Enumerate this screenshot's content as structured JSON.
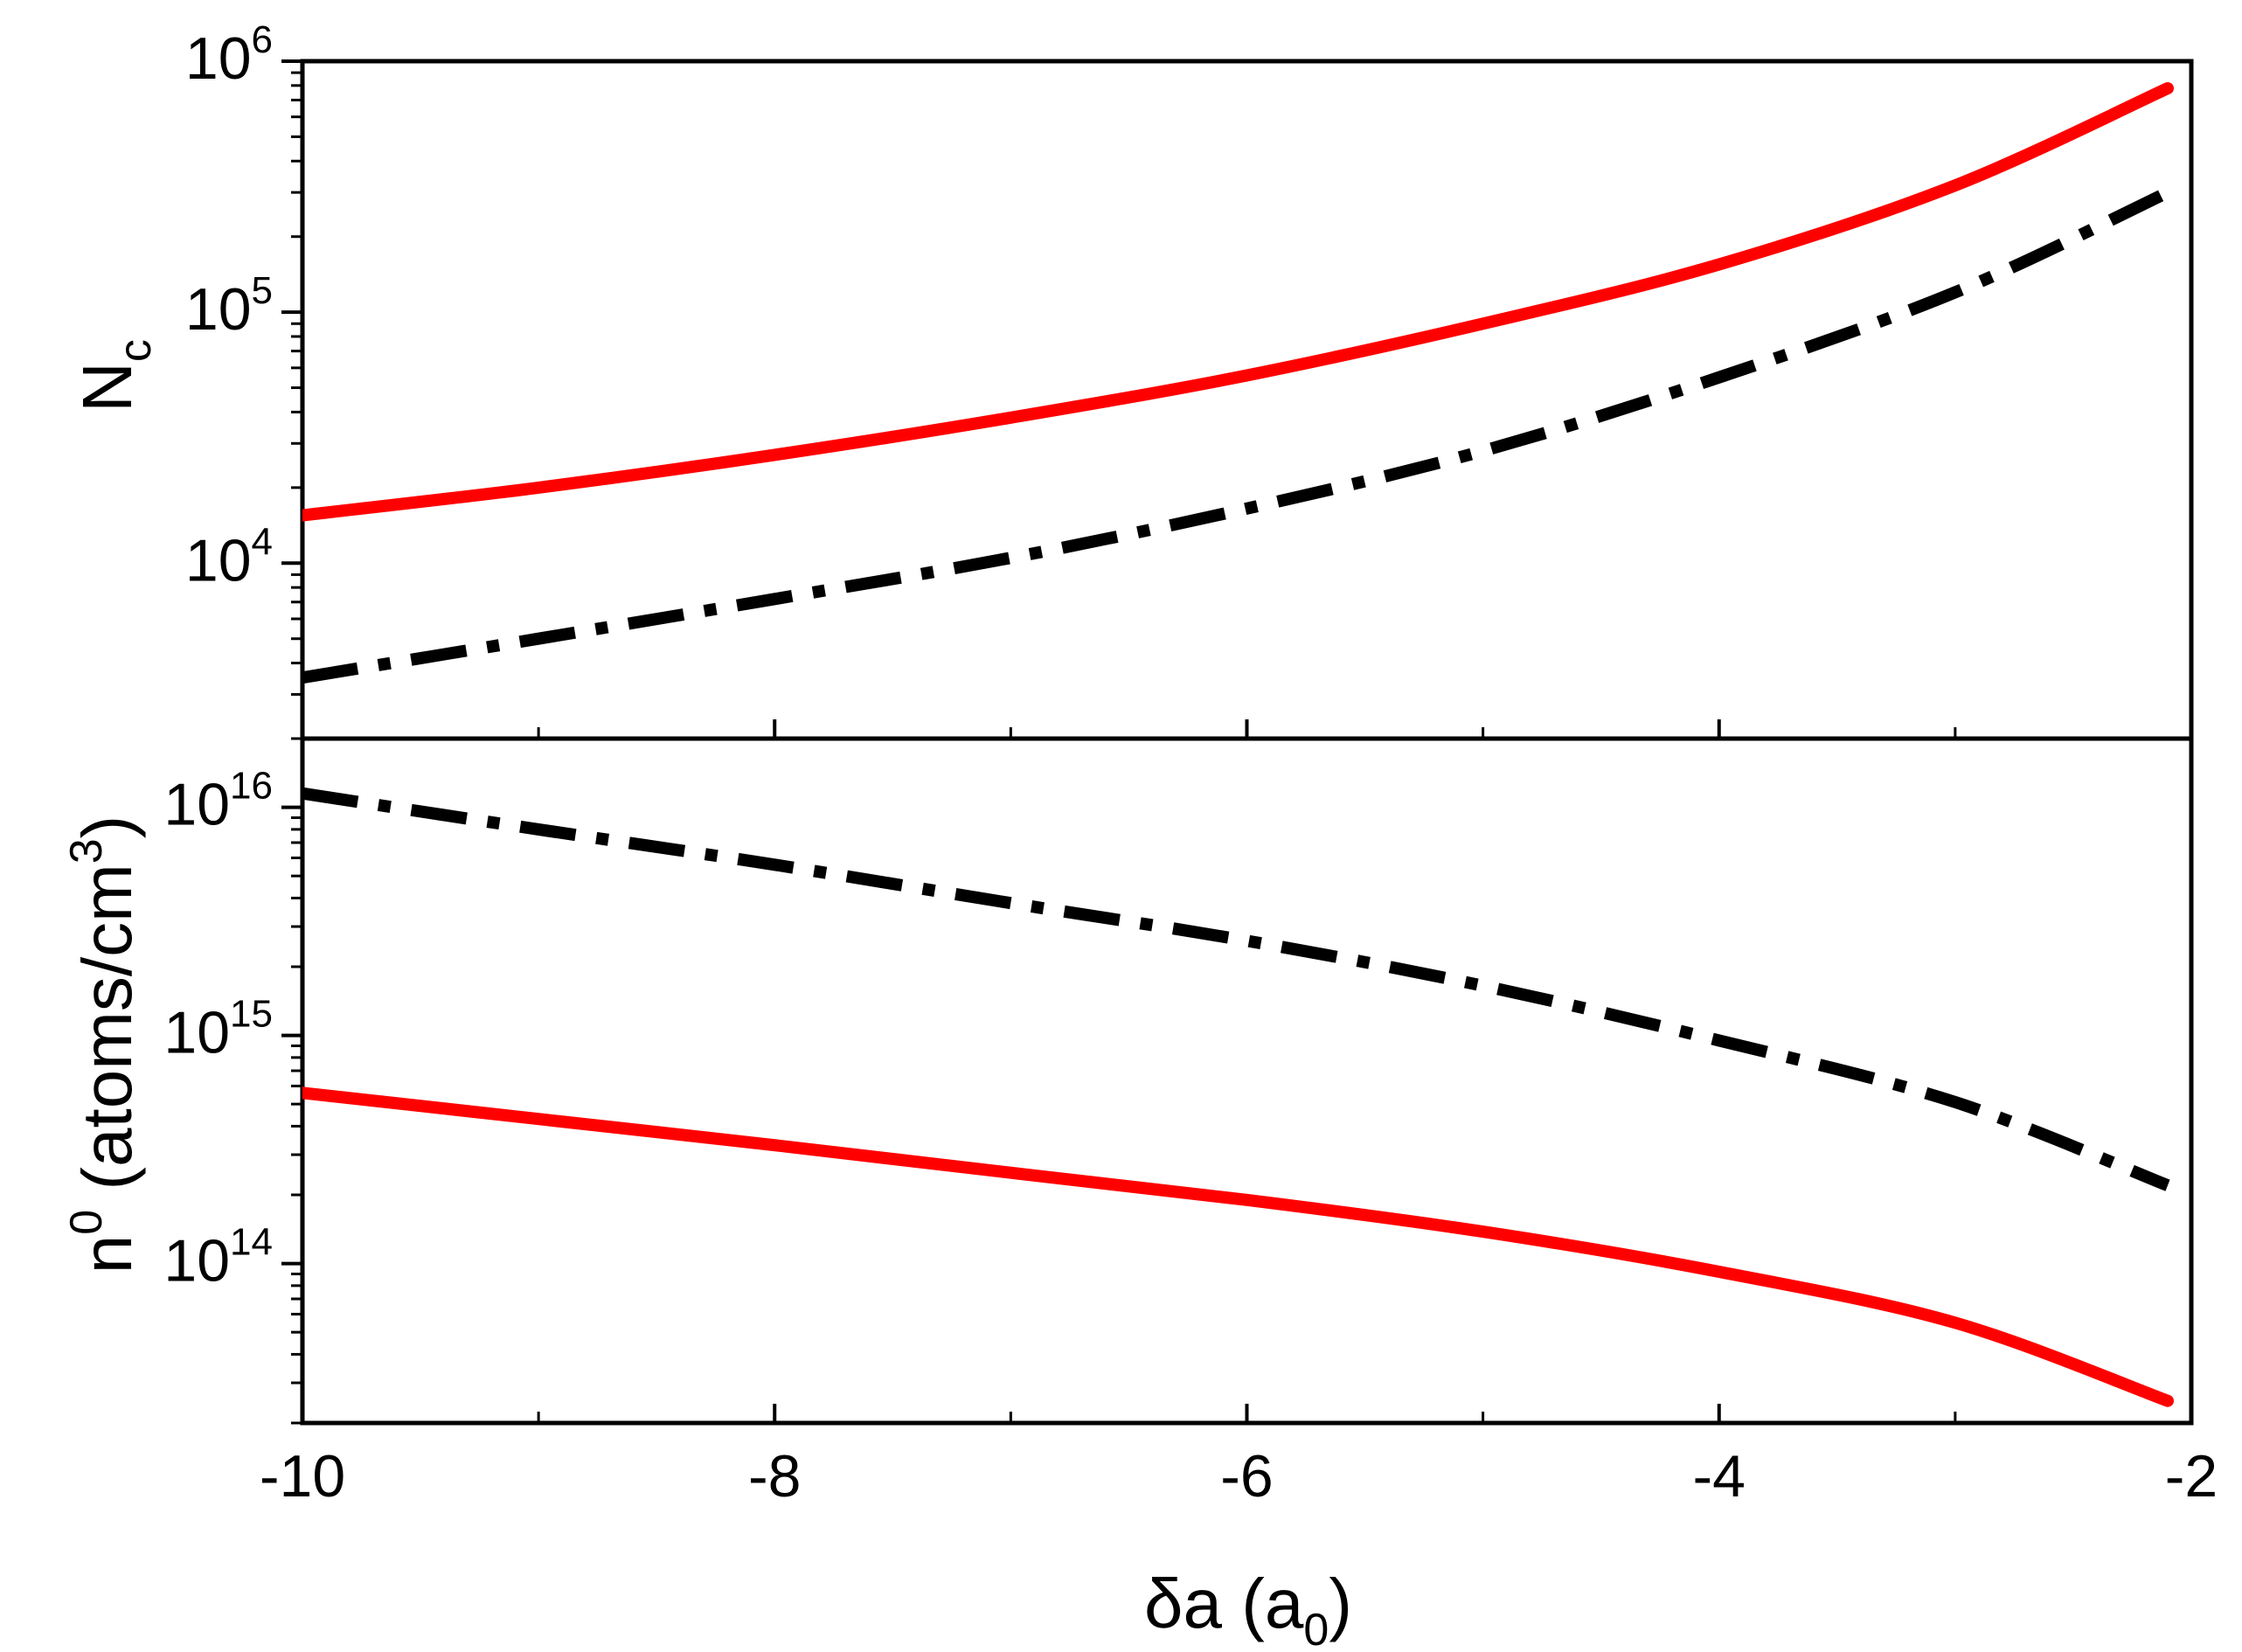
{
  "chart_data": [
    {
      "type": "line",
      "panel": "top",
      "title": "",
      "xlabel": "",
      "ylabel": "Nc",
      "ylabel_main": "N",
      "ylabel_sub": "c",
      "yscale": "log",
      "xlim": [
        -10,
        -2
      ],
      "ylim": [
        2000,
        1000000
      ],
      "yticks": [
        {
          "base": "10",
          "exp": "4",
          "value": 10000
        },
        {
          "base": "10",
          "exp": "5",
          "value": 100000
        },
        {
          "base": "10",
          "exp": "6",
          "value": 1000000
        }
      ],
      "x": [
        -10,
        -9,
        -8,
        -7,
        -6,
        -5,
        -4,
        -3,
        -2.1
      ],
      "series": [
        {
          "name": "solid",
          "color": "#ff0000",
          "style": "solid",
          "values": [
            15500,
            20000,
            27000,
            38000,
            56000,
            90000,
            155000,
            320000,
            780000
          ]
        },
        {
          "name": "dash-dot",
          "color": "#000000",
          "style": "dashdot",
          "values": [
            3500,
            5000,
            7200,
            10500,
            16500,
            28000,
            55000,
            120000,
            300000
          ]
        }
      ]
    },
    {
      "type": "line",
      "panel": "bottom",
      "title": "",
      "xlabel": "δa (a0)",
      "xlabel_main": "δa (a",
      "xlabel_sub": "0",
      "xlabel_end": ")",
      "ylabel": "n0 (atoms/cm3)",
      "ylabel_n": "n",
      "ylabel_n_sup": "0",
      "ylabel_units": " (atoms/cm",
      "ylabel_units_sup": "3",
      "ylabel_end": ")",
      "yscale": "log",
      "xlim": [
        -10,
        -2
      ],
      "ylim": [
        20000000000000,
        20000000000000000
      ],
      "xticks": [
        {
          "label": "-10",
          "value": -10
        },
        {
          "label": "-8",
          "value": -8
        },
        {
          "label": "-6",
          "value": -6
        },
        {
          "label": "-4",
          "value": -4
        },
        {
          "label": "-2",
          "value": -2
        }
      ],
      "yticks": [
        {
          "base": "10",
          "exp": "14",
          "value": 100000000000000
        },
        {
          "base": "10",
          "exp": "15",
          "value": 1000000000000000
        },
        {
          "base": "10",
          "exp": "16",
          "value": 10000000000000000
        }
      ],
      "x": [
        -10,
        -9,
        -8,
        -7,
        -6,
        -5,
        -4,
        -3,
        -2.1
      ],
      "series": [
        {
          "name": "dash-dot",
          "color": "#000000",
          "style": "dashdot",
          "values": [
            11500000000000000,
            8000000000000000,
            5600000000000000,
            3800000000000000,
            2600000000000000,
            1650000000000000,
            950000000000000,
            510000000000000,
            220000000000000
          ]
        },
        {
          "name": "solid",
          "color": "#ff0000",
          "style": "solid",
          "values": [
            560000000000000,
            430000000000000,
            330000000000000,
            250000000000000,
            190000000000000,
            138000000000000,
            92000000000000,
            55000000000000,
            25000000000000
          ]
        }
      ]
    }
  ]
}
